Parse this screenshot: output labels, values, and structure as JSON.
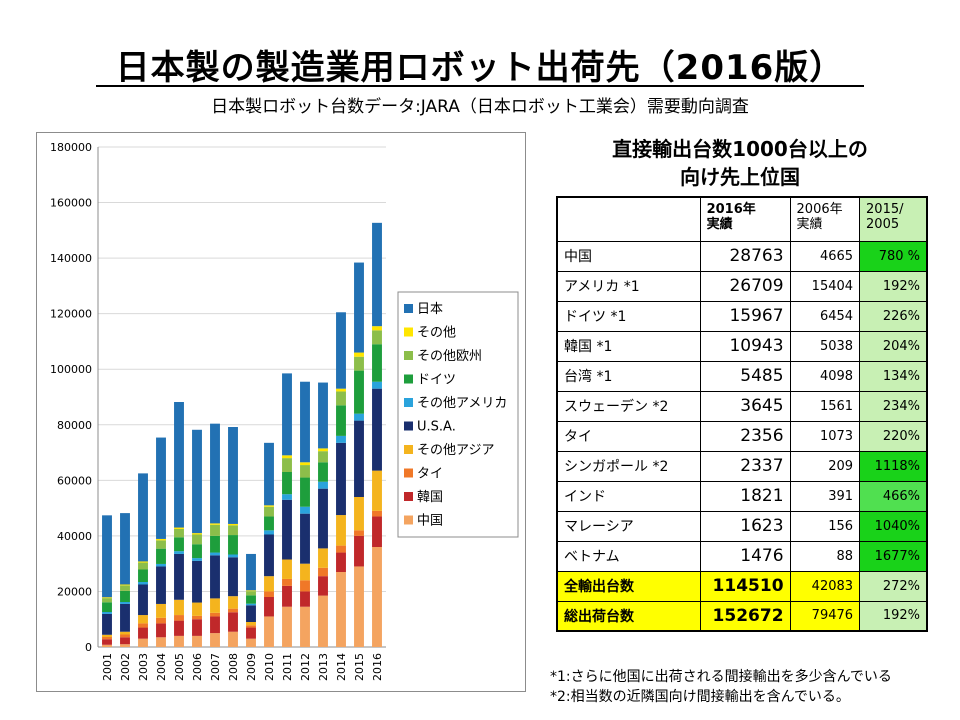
{
  "title": "日本製の製造業用ロボット出荷先（2016版）",
  "subtitle": "日本製ロボット台数データ:JARA（日本ロボット工業会）需要動向調査",
  "table": {
    "title_line1": "直接輸出台数1000台以上の",
    "title_line2": "向け先上位国",
    "headers": [
      "",
      "2016年\n実績",
      "2006年\n実績",
      "2015/\n2005"
    ],
    "rows": [
      {
        "country": "中国",
        "v2016": "28763",
        "v2006": "4665",
        "ratio": "780 %",
        "color": "#19d219"
      },
      {
        "country": "アメリカ *1",
        "v2016": "26709",
        "v2006": "15404",
        "ratio": "192%",
        "color": "#c8f0b4"
      },
      {
        "country": "ドイツ *1",
        "v2016": "15967",
        "v2006": "6454",
        "ratio": "226%",
        "color": "#c8f0b4"
      },
      {
        "country": "韓国 *1",
        "v2016": "10943",
        "v2006": "5038",
        "ratio": "204%",
        "color": "#c8f0b4"
      },
      {
        "country": "台湾 *1",
        "v2016": "5485",
        "v2006": "4098",
        "ratio": "134%",
        "color": "#c8f0b4"
      },
      {
        "country": "スウェーデン *2",
        "v2016": "3645",
        "v2006": "1561",
        "ratio": "234%",
        "color": "#c8f0b4"
      },
      {
        "country": "タイ",
        "v2016": "2356",
        "v2006": "1073",
        "ratio": "220%",
        "color": "#c8f0b4"
      },
      {
        "country": "シンガポール *2",
        "v2016": "2337",
        "v2006": "209",
        "ratio": "1118%",
        "color": "#19d219"
      },
      {
        "country": "インド",
        "v2016": "1821",
        "v2006": "391",
        "ratio": "466%",
        "color": "#50e050"
      },
      {
        "country": "マレーシア",
        "v2016": "1623",
        "v2006": "156",
        "ratio": "1040%",
        "color": "#19d219"
      },
      {
        "country": "ベトナム",
        "v2016": "1476",
        "v2006": "88",
        "ratio": "1677%",
        "color": "#19d219"
      }
    ],
    "totals": [
      {
        "country": "全輸出台数",
        "v2016": "114510",
        "v2006": "42083",
        "ratio": "272%",
        "color": "#c8f0b4"
      },
      {
        "country": "総出荷台数",
        "v2016": "152672",
        "v2006": "79476",
        "ratio": "192%",
        "color": "#c8f0b4"
      }
    ]
  },
  "footnotes": [
    "*1:さらに他国に出荷される間接輸出を多少含んでいる",
    "*2:相当数の近隣国向け間接輸出を含んでいる。"
  ],
  "chart_data": {
    "type": "bar",
    "stacked": true,
    "categories": [
      "2001",
      "2002",
      "2003",
      "2004",
      "2005",
      "2006",
      "2007",
      "2008",
      "2009",
      "2010",
      "2011",
      "2012",
      "2013",
      "2014",
      "2015",
      "2016"
    ],
    "ylim": [
      0,
      180000
    ],
    "yticks": [
      "0",
      "20000",
      "40000",
      "60000",
      "80000",
      "100000",
      "120000",
      "140000",
      "160000",
      "180000"
    ],
    "grid": true,
    "legend_position": "right",
    "series": [
      {
        "name": "中国",
        "color": "#f4a460",
        "values": [
          800,
          1000,
          3000,
          3500,
          4000,
          4000,
          5000,
          5500,
          3000,
          11000,
          14500,
          14500,
          18500,
          27000,
          29000,
          36000
        ]
      },
      {
        "name": "韓国",
        "color": "#c0282a",
        "values": [
          2000,
          2500,
          4000,
          5000,
          5500,
          6000,
          6000,
          7000,
          4000,
          7000,
          7500,
          5500,
          7000,
          7000,
          11000,
          11000
        ]
      },
      {
        "name": "タイ",
        "color": "#f07828",
        "values": [
          800,
          1000,
          1500,
          2000,
          2000,
          1200,
          1300,
          1300,
          800,
          2000,
          2500,
          4000,
          3000,
          2500,
          2000,
          2000
        ]
      },
      {
        "name": "その他アジア",
        "color": "#f4b41e",
        "values": [
          800,
          1000,
          3000,
          5000,
          5500,
          4800,
          5200,
          4500,
          1200,
          5500,
          7000,
          6000,
          7000,
          11000,
          12000,
          14500
        ]
      },
      {
        "name": "U.S.A.",
        "color": "#1a2f6e",
        "values": [
          7500,
          10000,
          11000,
          13500,
          16500,
          15000,
          15500,
          14000,
          6000,
          15000,
          21500,
          18000,
          21500,
          26000,
          27500,
          29500
        ]
      },
      {
        "name": "その他アメリカ",
        "color": "#2aa3dc",
        "values": [
          700,
          700,
          900,
          900,
          1000,
          1000,
          1000,
          1000,
          600,
          1500,
          2000,
          2500,
          2500,
          2500,
          2500,
          2500
        ]
      },
      {
        "name": "ドイツ",
        "color": "#1e9e3c",
        "values": [
          3500,
          4000,
          4500,
          5500,
          5000,
          5000,
          6000,
          7000,
          3000,
          5000,
          8000,
          10500,
          7000,
          11000,
          15500,
          13500
        ]
      },
      {
        "name": "その他欧州",
        "color": "#8cbe4a",
        "values": [
          1500,
          2000,
          2500,
          3000,
          3000,
          3500,
          4000,
          3500,
          1500,
          3500,
          5000,
          4500,
          4000,
          5000,
          5000,
          5000
        ]
      },
      {
        "name": "その他",
        "color": "#ffe600",
        "values": [
          300,
          300,
          400,
          500,
          500,
          500,
          500,
          500,
          300,
          500,
          1000,
          1000,
          1000,
          1000,
          1500,
          1500
        ]
      },
      {
        "name": "日本",
        "color": "#2271b3",
        "values": [
          29500,
          25700,
          31700,
          36500,
          45200,
          37200,
          35900,
          34900,
          13100,
          22500,
          29500,
          29000,
          23700,
          27500,
          32400,
          37200
        ]
      }
    ]
  }
}
